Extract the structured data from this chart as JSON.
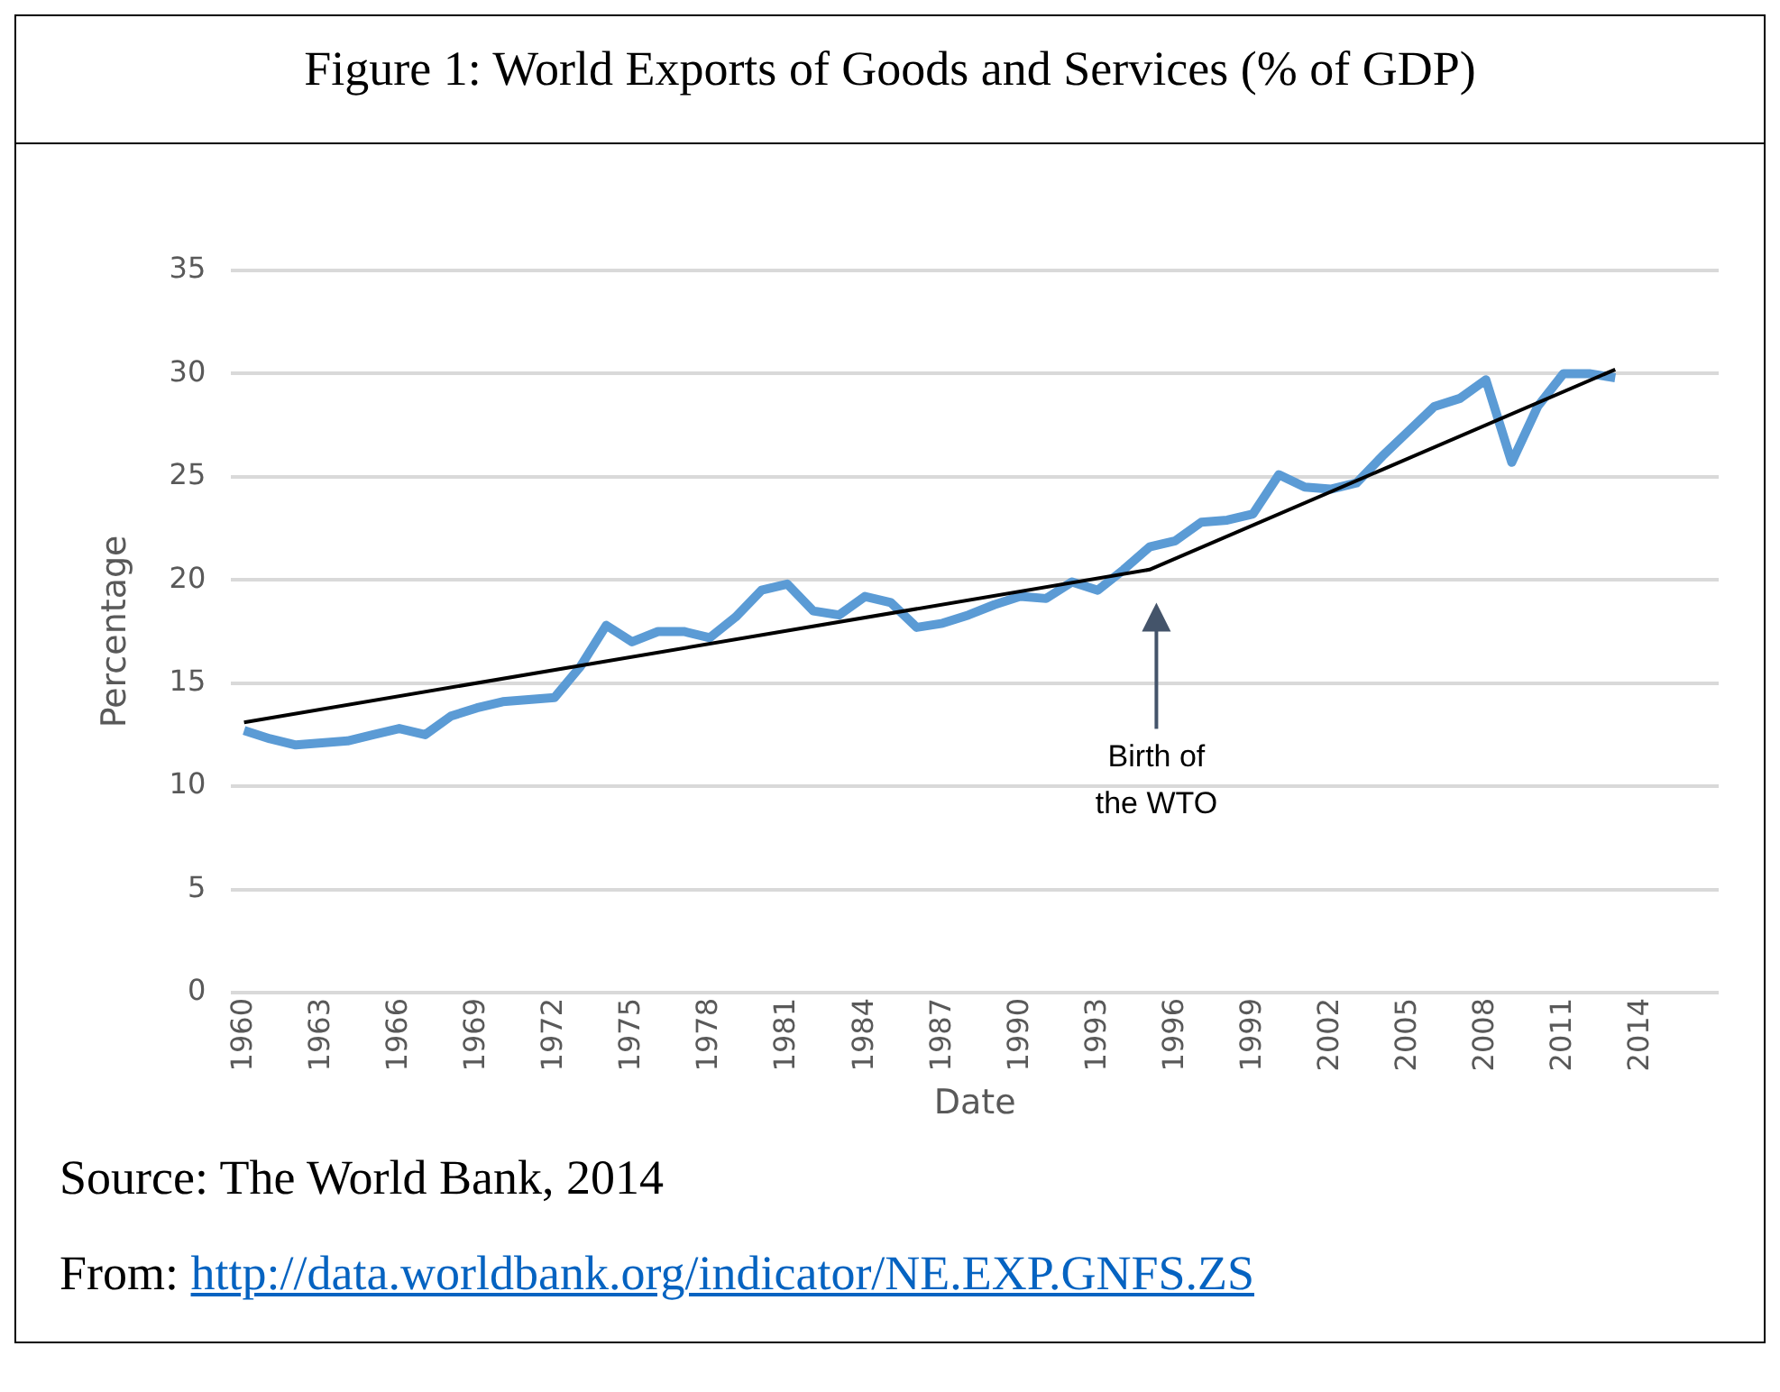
{
  "chart_data": {
    "type": "line",
    "title": "Figure 1: World Exports of Goods and Services (% of GDP)",
    "xlabel": "Date",
    "ylabel": "Percentage",
    "x": [
      1960,
      1961,
      1962,
      1963,
      1964,
      1965,
      1966,
      1967,
      1968,
      1969,
      1970,
      1971,
      1972,
      1973,
      1974,
      1975,
      1976,
      1977,
      1978,
      1979,
      1980,
      1981,
      1982,
      1983,
      1984,
      1985,
      1986,
      1987,
      1988,
      1989,
      1990,
      1991,
      1992,
      1993,
      1994,
      1995,
      1996,
      1997,
      1998,
      1999,
      2000,
      2001,
      2002,
      2003,
      2004,
      2005,
      2006,
      2007,
      2008,
      2009,
      2010,
      2011,
      2012,
      2013
    ],
    "series": [
      {
        "type": "line",
        "color": "#5b9bd5",
        "values": [
          12.7,
          12.3,
          12.0,
          12.1,
          12.2,
          12.5,
          12.8,
          12.5,
          13.4,
          13.8,
          14.1,
          14.2,
          14.3,
          15.8,
          17.8,
          17.0,
          17.5,
          17.5,
          17.2,
          18.2,
          19.5,
          19.8,
          18.5,
          18.3,
          19.2,
          18.9,
          17.7,
          17.9,
          18.3,
          18.8,
          19.2,
          19.1,
          19.9,
          19.5,
          20.5,
          21.6,
          21.9,
          22.8,
          22.9,
          23.2,
          25.1,
          24.5,
          24.4,
          24.7,
          26.0,
          27.2,
          28.4,
          28.8,
          29.7,
          25.7,
          28.4,
          30.0,
          30.0,
          29.8
        ]
      },
      {
        "type": "line",
        "color": "#000000",
        "x": [
          1960,
          1995,
          2013
        ],
        "values": [
          13.1,
          20.5,
          30.2
        ]
      }
    ],
    "xlim": [
      1959.5,
      2017
    ],
    "xticks": [
      1960,
      1963,
      1966,
      1969,
      1972,
      1975,
      1978,
      1981,
      1984,
      1987,
      1990,
      1993,
      1996,
      1999,
      2002,
      2005,
      2008,
      2011,
      2014
    ],
    "ylim": [
      0,
      35
    ],
    "yticks": [
      0,
      5,
      10,
      15,
      20,
      25,
      30,
      35
    ],
    "grid": "y",
    "legend": false,
    "marker": "none",
    "line_style": "solid",
    "annotations": [
      "Birth of\nthe WTO",
      "Source:  The World Bank, 2014",
      "From:  http://data.worldbank.org/indicator/NE.EXP.GNFS.ZS"
    ]
  }
}
